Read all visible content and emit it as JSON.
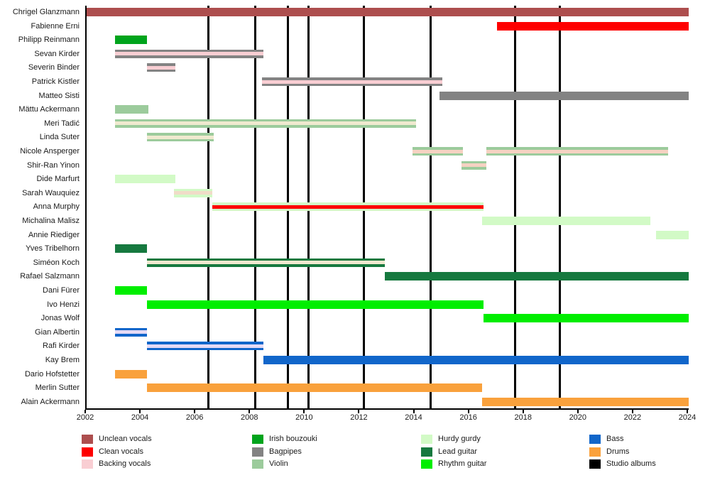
{
  "chart_data": {
    "type": "bar",
    "subtype": "gantt-timeline",
    "title": "",
    "xlabel": "",
    "ylabel": "",
    "axis": {
      "min": 2002,
      "max": 2024,
      "ticks": [
        2002,
        2004,
        2006,
        2008,
        2010,
        2012,
        2014,
        2016,
        2018,
        2020,
        2022,
        2024
      ]
    },
    "palette": {
      "unclean_vocals": "#ad4e4e",
      "clean_vocals": "#fe0000",
      "backing_vocals": "#f9ced3",
      "irish_bouzouki": "#00a41c",
      "bagpipes": "#838383",
      "violin": "#9ccb9c",
      "hurdy_gurdy": "#d2fac6",
      "lead_guitar": "#16793f",
      "rhythm_guitar": "#00ee00",
      "bass": "#1166ca",
      "drums": "#f9a13c",
      "studio_albums": "#000000",
      "stripe_cream": "#f0e9cf",
      "stripe_peach": "#f6d2c2",
      "stripe_tan": "#f0dcc8",
      "stripe_lavender": "#e5daf5"
    },
    "rows": [
      {
        "name": "Chrigel Glanzmann",
        "segments": [
          {
            "start": 2002.0,
            "end": 2024.0,
            "stripes": [
              "unclean_vocals"
            ]
          }
        ]
      },
      {
        "name": "Fabienne Erni",
        "segments": [
          {
            "start": 2017.0,
            "end": 2024.0,
            "stripes": [
              "clean_vocals"
            ]
          }
        ]
      },
      {
        "name": "Philipp Reinmann",
        "segments": [
          {
            "start": 2003.05,
            "end": 2004.2,
            "stripes": [
              "irish_bouzouki"
            ]
          }
        ]
      },
      {
        "name": "Sevan Kirder",
        "segments": [
          {
            "start": 2003.05,
            "end": 2008.45,
            "stripes": [
              "bagpipes",
              "backing_vocals",
              "bagpipes"
            ]
          }
        ]
      },
      {
        "name": "Severin Binder",
        "segments": [
          {
            "start": 2004.2,
            "end": 2005.25,
            "stripes": [
              "bagpipes",
              "backing_vocals",
              "bagpipes"
            ]
          }
        ]
      },
      {
        "name": "Patrick Kistler",
        "segments": [
          {
            "start": 2008.4,
            "end": 2015.0,
            "stripes": [
              "bagpipes",
              "backing_vocals",
              "bagpipes"
            ]
          }
        ]
      },
      {
        "name": "Matteo Sisti",
        "segments": [
          {
            "start": 2014.9,
            "end": 2024.0,
            "stripes": [
              "bagpipes"
            ]
          }
        ]
      },
      {
        "name": "Mättu Ackermann",
        "segments": [
          {
            "start": 2003.05,
            "end": 2004.25,
            "stripes": [
              "violin"
            ]
          }
        ]
      },
      {
        "name": "Meri Tadić",
        "segments": [
          {
            "start": 2003.05,
            "end": 2014.05,
            "stripes": [
              "violin",
              "stripe_cream",
              "violin"
            ]
          }
        ]
      },
      {
        "name": "Linda Suter",
        "segments": [
          {
            "start": 2004.2,
            "end": 2006.65,
            "stripes": [
              "violin",
              "stripe_cream",
              "violin"
            ]
          }
        ]
      },
      {
        "name": "Nicole Ansperger",
        "segments": [
          {
            "start": 2013.9,
            "end": 2015.75,
            "stripes": [
              "violin",
              "stripe_peach",
              "violin"
            ]
          },
          {
            "start": 2016.6,
            "end": 2023.25,
            "stripes": [
              "violin",
              "stripe_peach",
              "violin"
            ]
          }
        ]
      },
      {
        "name": "Shir-Ran Yinon",
        "segments": [
          {
            "start": 2015.7,
            "end": 2016.6,
            "stripes": [
              "violin",
              "stripe_peach",
              "violin"
            ]
          }
        ]
      },
      {
        "name": "Dide Marfurt",
        "segments": [
          {
            "start": 2003.05,
            "end": 2005.25,
            "stripes": [
              "hurdy_gurdy"
            ]
          }
        ]
      },
      {
        "name": "Sarah Wauquiez",
        "segments": [
          {
            "start": 2005.2,
            "end": 2006.6,
            "stripes": [
              "hurdy_gurdy",
              "stripe_tan",
              "hurdy_gurdy"
            ]
          }
        ]
      },
      {
        "name": "Anna Murphy",
        "segments": [
          {
            "start": 2006.6,
            "end": 2016.5,
            "stripes": [
              "hurdy_gurdy",
              "clean_vocals",
              "hurdy_gurdy"
            ]
          }
        ]
      },
      {
        "name": "Michalina Malisz",
        "segments": [
          {
            "start": 2016.45,
            "end": 2022.6,
            "stripes": [
              "hurdy_gurdy"
            ]
          }
        ]
      },
      {
        "name": "Annie Riediger",
        "segments": [
          {
            "start": 2022.8,
            "end": 2024.0,
            "stripes": [
              "hurdy_gurdy"
            ]
          }
        ]
      },
      {
        "name": "Yves Tribelhorn",
        "segments": [
          {
            "start": 2003.05,
            "end": 2004.2,
            "stripes": [
              "lead_guitar"
            ]
          }
        ]
      },
      {
        "name": "Siméon Koch",
        "segments": [
          {
            "start": 2004.2,
            "end": 2012.9,
            "stripes": [
              "lead_guitar",
              "stripe_cream",
              "lead_guitar"
            ]
          }
        ]
      },
      {
        "name": "Rafael Salzmann",
        "segments": [
          {
            "start": 2012.9,
            "end": 2024.0,
            "stripes": [
              "lead_guitar"
            ]
          }
        ]
      },
      {
        "name": "Dani Fürer",
        "segments": [
          {
            "start": 2003.05,
            "end": 2004.2,
            "stripes": [
              "rhythm_guitar"
            ]
          }
        ]
      },
      {
        "name": "Ivo Henzi",
        "segments": [
          {
            "start": 2004.2,
            "end": 2016.5,
            "stripes": [
              "rhythm_guitar"
            ]
          }
        ]
      },
      {
        "name": "Jonas Wolf",
        "segments": [
          {
            "start": 2016.5,
            "end": 2024.0,
            "stripes": [
              "rhythm_guitar"
            ]
          }
        ]
      },
      {
        "name": "Gian Albertin",
        "segments": [
          {
            "start": 2003.05,
            "end": 2004.2,
            "stripes": [
              "bass",
              "stripe_lavender",
              "bass"
            ]
          }
        ]
      },
      {
        "name": "Rafi Kirder",
        "segments": [
          {
            "start": 2004.2,
            "end": 2008.45,
            "stripes": [
              "bass",
              "stripe_lavender",
              "bass"
            ]
          }
        ]
      },
      {
        "name": "Kay Brem",
        "segments": [
          {
            "start": 2008.45,
            "end": 2024.0,
            "stripes": [
              "bass"
            ]
          }
        ]
      },
      {
        "name": "Dario Hofstetter",
        "segments": [
          {
            "start": 2003.05,
            "end": 2004.2,
            "stripes": [
              "drums"
            ]
          }
        ]
      },
      {
        "name": "Merlin Sutter",
        "segments": [
          {
            "start": 2004.2,
            "end": 2016.45,
            "stripes": [
              "drums"
            ]
          }
        ]
      },
      {
        "name": "Alain Ackermann",
        "segments": [
          {
            "start": 2016.45,
            "end": 2024.0,
            "stripes": [
              "drums"
            ]
          }
        ]
      }
    ],
    "album_lines": {
      "years": [
        2006.45,
        2008.17,
        2009.36,
        2010.1,
        2012.14,
        2014.58,
        2017.66,
        2019.28
      ]
    },
    "legend": {
      "position": "bottom",
      "columns": [
        [
          {
            "label": "Unclean vocals",
            "color": "unclean_vocals"
          },
          {
            "label": "Clean vocals",
            "color": "clean_vocals"
          },
          {
            "label": "Backing vocals",
            "color": "backing_vocals"
          }
        ],
        [
          {
            "label": "Irish bouzouki",
            "color": "irish_bouzouki"
          },
          {
            "label": "Bagpipes",
            "color": "bagpipes"
          },
          {
            "label": "Violin",
            "color": "violin"
          }
        ],
        [
          {
            "label": "Hurdy gurdy",
            "color": "hurdy_gurdy"
          },
          {
            "label": "Lead guitar",
            "color": "lead_guitar"
          },
          {
            "label": "Rhythm guitar",
            "color": "rhythm_guitar"
          }
        ],
        [
          {
            "label": "Bass",
            "color": "bass"
          },
          {
            "label": "Drums",
            "color": "drums"
          },
          {
            "label": "Studio albums",
            "color": "studio_albums"
          }
        ]
      ]
    }
  }
}
